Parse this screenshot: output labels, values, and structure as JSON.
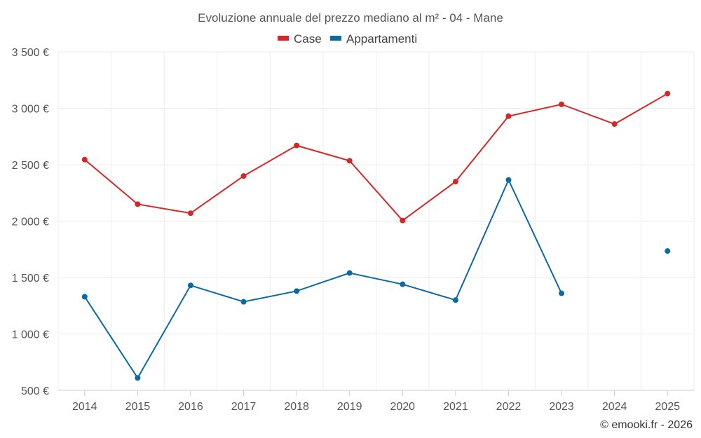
{
  "chart_data": {
    "type": "line",
    "title": "Evoluzione annuale del prezzo mediano al m² - 04 - Mane",
    "categories": [
      "2014",
      "2015",
      "2016",
      "2017",
      "2018",
      "2019",
      "2020",
      "2021",
      "2022",
      "2023",
      "2024",
      "2025"
    ],
    "ylim": [
      500,
      3500
    ],
    "yticks": [
      500,
      1000,
      1500,
      2000,
      2500,
      3000,
      3500
    ],
    "ytick_labels": [
      "500 €",
      "1 000 €",
      "1 500 €",
      "2 000 €",
      "2 500 €",
      "3 000 €",
      "3 500 €"
    ],
    "legend_position": "top-center",
    "grid": true,
    "series": [
      {
        "name": "Case",
        "color": "#d62728",
        "values": [
          2545,
          2150,
          2070,
          2400,
          2670,
          2535,
          2005,
          2350,
          2930,
          3035,
          2860,
          3130
        ]
      },
      {
        "name": "Appartamenti",
        "color": "#0b69a3",
        "values": [
          1330,
          610,
          1430,
          1285,
          1380,
          1540,
          1440,
          1300,
          2365,
          1360,
          null,
          1735
        ]
      }
    ]
  },
  "credit": "© emooki.fr - 2026"
}
